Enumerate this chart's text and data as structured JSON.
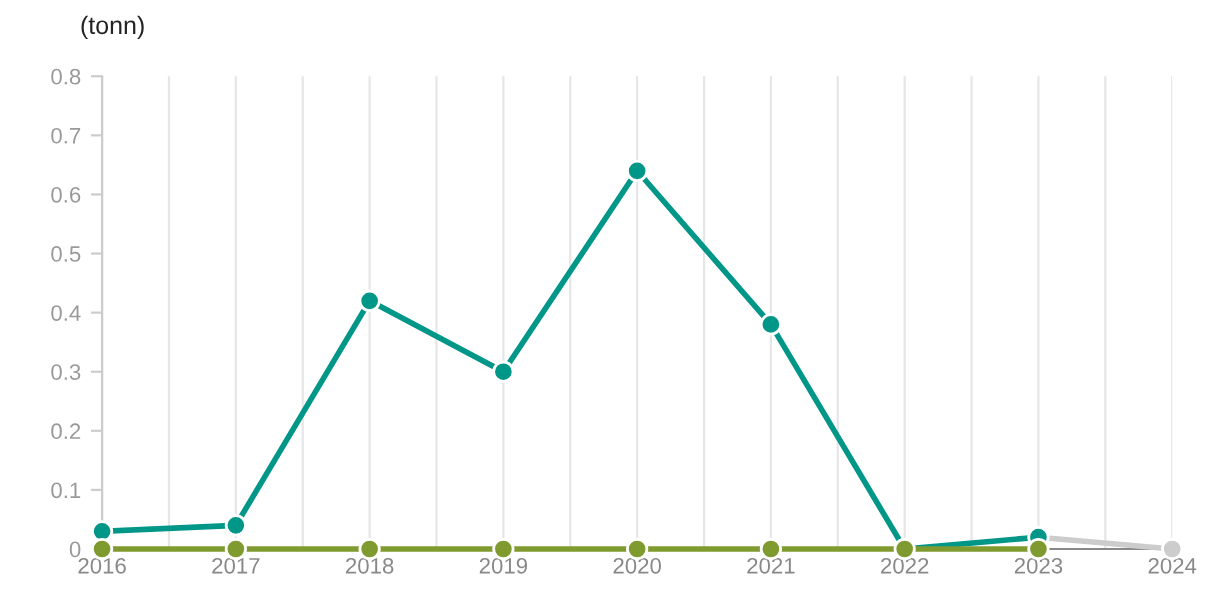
{
  "chart_data": {
    "type": "line",
    "ylabel": "(tonn)",
    "xlim": [
      2016,
      2024
    ],
    "xticks": [
      2016,
      {
        "value": 2016.5,
        "label": null
      },
      2017,
      {
        "value": 2017.5,
        "label": null
      },
      2018,
      {
        "value": 2018.5,
        "label": null
      },
      2019,
      {
        "value": 2019.5,
        "label": null
      },
      2020,
      {
        "value": 2020.5,
        "label": null
      },
      2021,
      {
        "value": 2021.5,
        "label": null
      },
      2022,
      {
        "value": 2022.5,
        "label": null
      },
      2023,
      {
        "value": 2023.5,
        "label": null
      },
      2024
    ],
    "ylim": [
      0,
      0.8
    ],
    "yticks": [
      0,
      0.1,
      0.2,
      0.3,
      0.4,
      0.5,
      0.6,
      0.7,
      0.8
    ],
    "grid": "x",
    "marker": "circle",
    "line_style": "solid",
    "legend": false,
    "series": [
      {
        "color": "#cccccc",
        "x": [
          2023,
          2024
        ],
        "values": [
          0.02,
          0
        ]
      },
      {
        "color": "#009688",
        "x": [
          2016,
          2017,
          2018,
          2019,
          2020,
          2021,
          2022,
          2023
        ],
        "values": [
          0.03,
          0.04,
          0.42,
          0.3,
          0.64,
          0.38,
          0,
          0.02
        ]
      },
      {
        "color": "#7f9a2e",
        "x": [
          2016,
          2017,
          2018,
          2019,
          2020,
          2021,
          2022,
          2023
        ],
        "values": [
          0,
          0,
          0,
          0,
          0,
          0,
          0,
          0
        ]
      }
    ]
  }
}
